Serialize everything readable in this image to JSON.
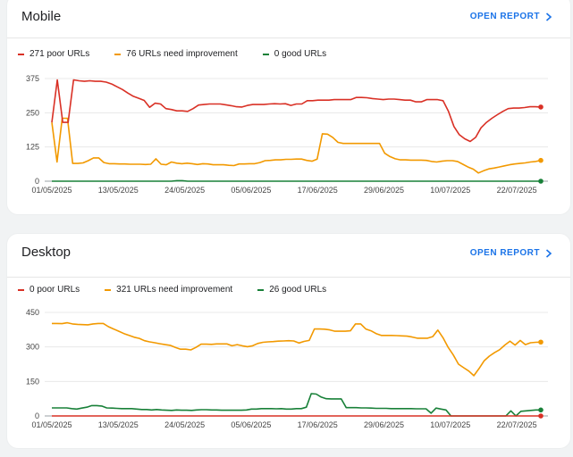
{
  "cards": [
    {
      "title": "Mobile",
      "open_report": "OPEN REPORT",
      "legend": [
        {
          "label": "271 poor URLs",
          "color": "#d93025"
        },
        {
          "label": "76 URLs need improvement",
          "color": "#f29900"
        },
        {
          "label": "0 good URLs",
          "color": "#188038"
        }
      ]
    },
    {
      "title": "Desktop",
      "open_report": "OPEN REPORT",
      "legend": [
        {
          "label": "0 poor URLs",
          "color": "#d93025"
        },
        {
          "label": "321 URLs need improvement",
          "color": "#f29900"
        },
        {
          "label": "26 good URLs",
          "color": "#188038"
        }
      ]
    }
  ],
  "chart_data": [
    {
      "type": "line",
      "x_tick_labels": [
        "01/05/2025",
        "13/05/2025",
        "24/05/2025",
        "05/06/2025",
        "17/06/2025",
        "29/06/2025",
        "10/07/2025",
        "22/07/2025"
      ],
      "y_ticks": [
        0,
        125,
        250,
        375
      ],
      "ylim": [
        0,
        375
      ],
      "series": [
        {
          "name": "271 poor URLs",
          "color": "#d93025",
          "values": [
            215,
            370,
            215,
            215,
            370,
            367,
            365,
            367,
            365,
            365,
            362,
            355,
            345,
            335,
            322,
            310,
            303,
            295,
            270,
            285,
            282,
            265,
            262,
            257,
            257,
            255,
            265,
            278,
            280,
            282,
            282,
            282,
            279,
            276,
            272,
            271,
            277,
            280,
            280,
            280,
            282,
            283,
            282,
            283,
            277,
            282,
            282,
            294,
            294,
            296,
            296,
            296,
            298,
            298,
            298,
            298,
            306,
            306,
            305,
            302,
            300,
            298,
            300,
            300,
            298,
            296,
            296,
            290,
            290,
            298,
            298,
            298,
            294,
            255,
            200,
            170,
            155,
            145,
            160,
            195,
            215,
            230,
            243,
            255,
            265,
            267,
            267,
            269,
            272,
            272,
            271
          ]
        },
        {
          "name": "76 URLs need improvement",
          "color": "#f29900",
          "values": [
            215,
            70,
            230,
            230,
            65,
            65,
            67,
            75,
            85,
            85,
            68,
            64,
            64,
            63,
            63,
            62,
            62,
            62,
            61,
            62,
            82,
            62,
            60,
            70,
            66,
            64,
            66,
            64,
            61,
            64,
            63,
            60,
            60,
            60,
            58,
            57,
            63,
            63,
            64,
            64,
            68,
            75,
            76,
            78,
            78,
            80,
            80,
            81,
            81,
            76,
            73,
            81,
            173,
            172,
            160,
            142,
            138,
            138,
            138,
            138,
            138,
            138,
            138,
            138,
            102,
            90,
            82,
            78,
            78,
            77,
            77,
            77,
            76,
            72,
            70,
            73,
            75,
            75,
            72,
            62,
            52,
            44,
            30,
            38,
            45,
            48,
            52,
            56,
            60,
            63,
            65,
            67,
            70,
            72,
            76
          ]
        },
        {
          "name": "0 good URLs",
          "color": "#188038",
          "values": [
            0,
            0,
            0,
            0,
            0,
            0,
            0,
            0,
            0,
            0,
            0,
            0,
            0,
            0,
            0,
            0,
            0,
            0,
            0,
            0,
            0,
            0,
            0,
            2,
            2,
            0,
            0,
            0,
            0,
            0,
            0,
            0,
            0,
            0,
            0,
            0,
            0,
            0,
            0,
            0,
            0,
            0,
            0,
            0,
            0,
            0,
            0,
            0,
            0,
            0,
            0,
            0,
            0,
            0,
            0,
            0,
            0,
            0,
            0,
            0,
            0,
            0,
            0,
            0,
            0,
            0,
            0,
            0,
            0,
            0,
            0,
            0,
            0,
            0,
            0,
            0,
            0,
            0,
            0,
            0,
            0,
            0,
            0,
            0,
            0,
            0,
            0,
            0,
            0,
            0,
            0
          ]
        }
      ]
    },
    {
      "type": "line",
      "x_tick_labels": [
        "01/05/2025",
        "13/05/2025",
        "24/05/2025",
        "05/06/2025",
        "17/06/2025",
        "29/06/2025",
        "10/07/2025",
        "22/07/2025"
      ],
      "y_ticks": [
        0,
        150,
        300,
        450
      ],
      "ylim": [
        0,
        450
      ],
      "series": [
        {
          "name": "0 poor URLs",
          "color": "#d93025",
          "values": [
            0,
            0,
            0,
            0,
            0,
            0,
            0,
            0,
            0,
            0,
            0,
            0,
            0,
            0,
            0,
            0,
            0,
            0,
            0,
            0,
            0,
            0,
            0,
            0,
            0,
            0,
            0,
            0,
            0,
            0,
            0,
            0,
            0,
            0,
            0,
            0,
            0,
            0,
            0,
            0,
            0,
            0,
            0,
            0,
            0,
            0,
            0,
            0,
            0,
            0,
            0,
            0,
            0,
            0,
            0,
            0,
            0,
            0,
            0,
            0,
            0,
            0,
            0,
            0,
            0,
            0,
            0,
            0,
            0,
            0,
            0,
            0,
            0,
            0,
            0,
            0,
            0,
            0,
            0,
            0,
            0,
            0,
            0,
            0,
            0,
            0,
            0,
            0,
            0,
            0,
            0
          ]
        },
        {
          "name": "321 URLs need improvement",
          "color": "#f29900",
          "values": [
            402,
            402,
            401,
            405,
            400,
            398,
            397,
            396,
            400,
            402,
            402,
            388,
            378,
            368,
            358,
            350,
            342,
            337,
            327,
            322,
            318,
            314,
            310,
            307,
            298,
            290,
            290,
            287,
            298,
            312,
            312,
            311,
            313,
            313,
            313,
            305,
            310,
            305,
            301,
            305,
            315,
            320,
            322,
            323,
            325,
            326,
            327,
            326,
            317,
            324,
            328,
            378,
            378,
            377,
            374,
            368,
            368,
            368,
            370,
            400,
            400,
            378,
            370,
            358,
            350,
            350,
            350,
            349,
            348,
            347,
            343,
            338,
            338,
            338,
            345,
            373,
            340,
            298,
            265,
            225,
            210,
            195,
            175,
            206,
            240,
            260,
            275,
            288,
            308,
            325,
            308,
            328,
            310,
            318,
            320,
            321
          ]
        },
        {
          "name": "26 good URLs",
          "color": "#188038",
          "values": [
            35,
            35,
            35,
            35,
            32,
            30,
            34,
            38,
            45,
            45,
            43,
            35,
            34,
            33,
            32,
            32,
            32,
            30,
            28,
            28,
            26,
            28,
            26,
            25,
            24,
            26,
            25,
            25,
            24,
            26,
            27,
            27,
            26,
            26,
            25,
            25,
            25,
            25,
            25,
            26,
            30,
            30,
            32,
            32,
            32,
            31,
            32,
            30,
            30,
            32,
            32,
            38,
            97,
            95,
            82,
            75,
            74,
            74,
            74,
            36,
            36,
            36,
            35,
            35,
            34,
            33,
            33,
            33,
            32,
            32,
            32,
            32,
            32,
            31,
            31,
            31,
            12,
            34,
            30,
            26,
            0,
            0,
            0,
            0,
            0,
            0,
            0,
            0,
            0,
            0,
            0,
            0,
            22,
            0,
            20,
            22,
            24,
            26,
            26
          ]
        }
      ]
    }
  ]
}
